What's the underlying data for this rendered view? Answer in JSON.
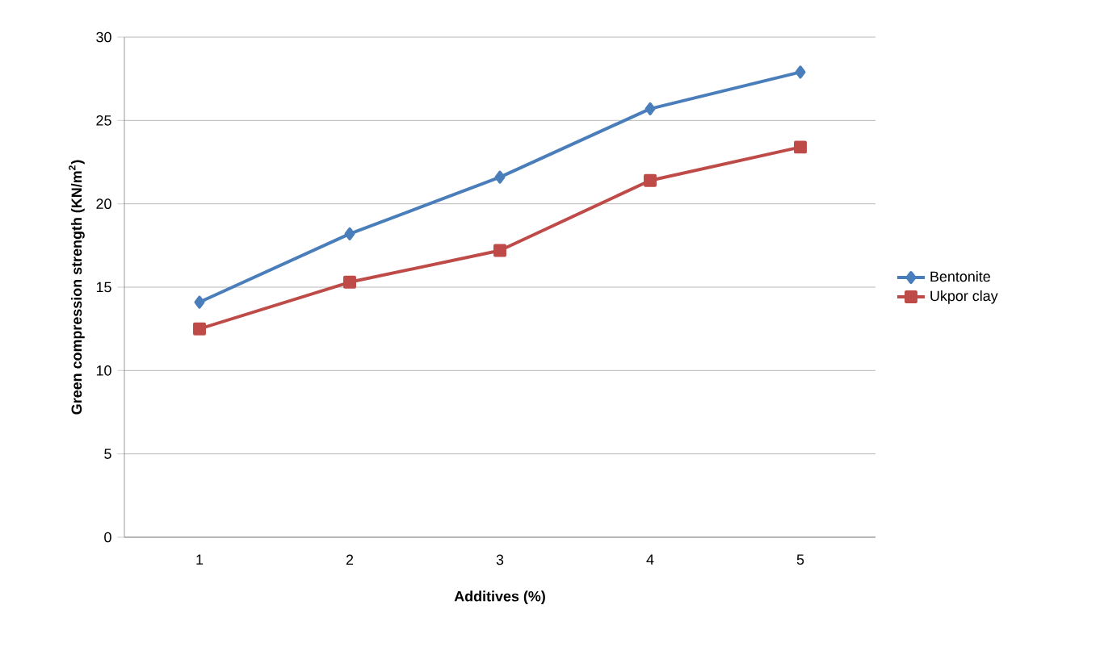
{
  "chart_data": {
    "type": "line",
    "xlabel": "Additives (%)",
    "ylabel": "Green compression strength (KN/m$^{2}$)",
    "categories": [
      "1",
      "2",
      "3",
      "4",
      "5"
    ],
    "series": [
      {
        "name": "Bentonite",
        "color": "#4a7ebb",
        "marker": "diamond",
        "values": [
          14.1,
          18.2,
          21.6,
          25.7,
          27.9
        ]
      },
      {
        "name": "Ukpor clay",
        "color": "#be4b48",
        "marker": "square",
        "values": [
          12.5,
          15.3,
          17.2,
          21.4,
          23.4
        ]
      }
    ],
    "ylim": [
      0,
      30
    ],
    "yticks": [
      0,
      5,
      10,
      15,
      20,
      25,
      30
    ],
    "grid": "y",
    "legend": "right"
  }
}
